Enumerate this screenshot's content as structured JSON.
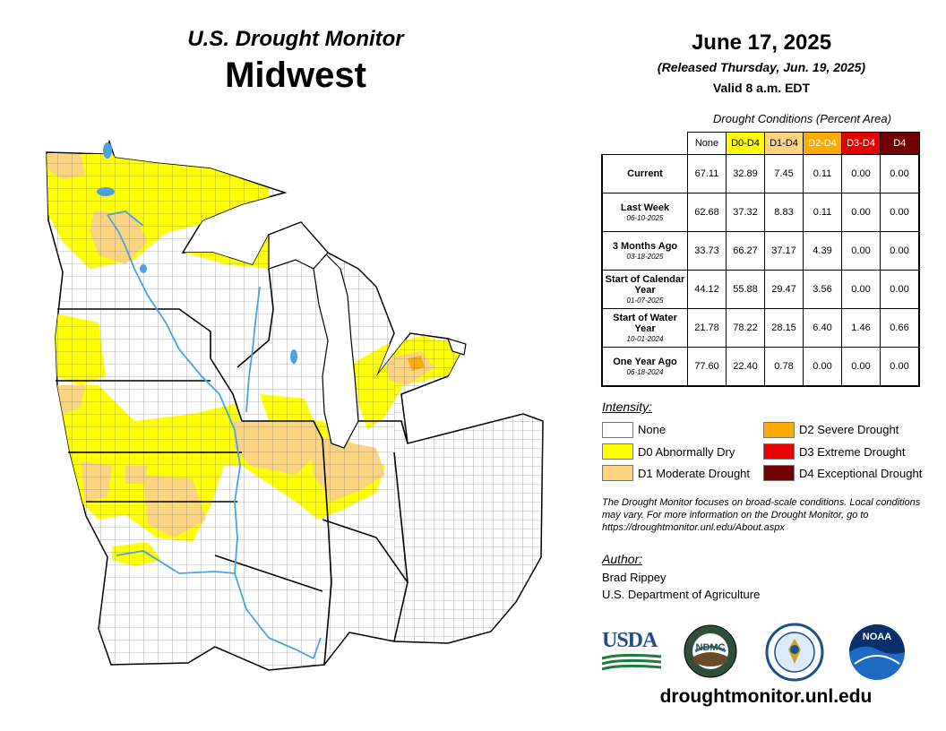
{
  "header": {
    "title": "U.S. Drought Monitor",
    "region": "Midwest",
    "date": "June 17, 2025",
    "released": "(Released Thursday, Jun. 19, 2025)",
    "valid": "Valid 8 a.m. EDT"
  },
  "conditions": {
    "title": "Drought Conditions (Percent Area)",
    "columns": [
      "None",
      "D0-D4",
      "D1-D4",
      "D2-D4",
      "D3-D4",
      "D4"
    ],
    "column_colors": [
      "#ffffff",
      "#ffff00",
      "#fcd37f",
      "#ffaa00",
      "#e60000",
      "#730000"
    ],
    "rows": [
      {
        "label": "Current",
        "date": "",
        "values": [
          "67.11",
          "32.89",
          "7.45",
          "0.11",
          "0.00",
          "0.00"
        ]
      },
      {
        "label": "Last Week",
        "date": "06-10-2025",
        "values": [
          "62.68",
          "37.32",
          "8.83",
          "0.11",
          "0.00",
          "0.00"
        ]
      },
      {
        "label": "3 Months Ago",
        "date": "03-18-2025",
        "values": [
          "33.73",
          "66.27",
          "37.17",
          "4.39",
          "0.00",
          "0.00"
        ]
      },
      {
        "label": "Start of Calendar Year",
        "date": "01-07-2025",
        "values": [
          "44.12",
          "55.88",
          "29.47",
          "3.56",
          "0.00",
          "0.00"
        ]
      },
      {
        "label": "Start of Water Year",
        "date": "10-01-2024",
        "values": [
          "21.78",
          "78.22",
          "28.15",
          "6.40",
          "1.46",
          "0.66"
        ]
      },
      {
        "label": "One Year Ago",
        "date": "06-18-2024",
        "values": [
          "77.60",
          "22.40",
          "0.78",
          "0.00",
          "0.00",
          "0.00"
        ]
      }
    ]
  },
  "legend": {
    "title": "Intensity:",
    "items": [
      {
        "label": "None",
        "color": "#ffffff"
      },
      {
        "label": "D0 Abnormally Dry",
        "color": "#ffff00"
      },
      {
        "label": "D1 Moderate Drought",
        "color": "#fcd37f"
      },
      {
        "label": "D2 Severe Drought",
        "color": "#ffaa00"
      },
      {
        "label": "D3 Extreme Drought",
        "color": "#e60000"
      },
      {
        "label": "D4 Exceptional Drought",
        "color": "#730000"
      }
    ]
  },
  "note": "The Drought Monitor focuses on broad-scale conditions. Local conditions may vary. For more information on the Drought Monitor, go to https://droughtmonitor.unl.edu/About.aspx",
  "author": {
    "title": "Author:",
    "name": "Brad Rippey",
    "org": "U.S. Department of Agriculture"
  },
  "logos": {
    "usda": "USDA",
    "ndmc": "NDMC",
    "noaa": "NOAA"
  },
  "url": "droughtmonitor.unl.edu",
  "colors": {
    "water": "#4aa3df",
    "county_line": "#555555",
    "state_line": "#000000"
  }
}
